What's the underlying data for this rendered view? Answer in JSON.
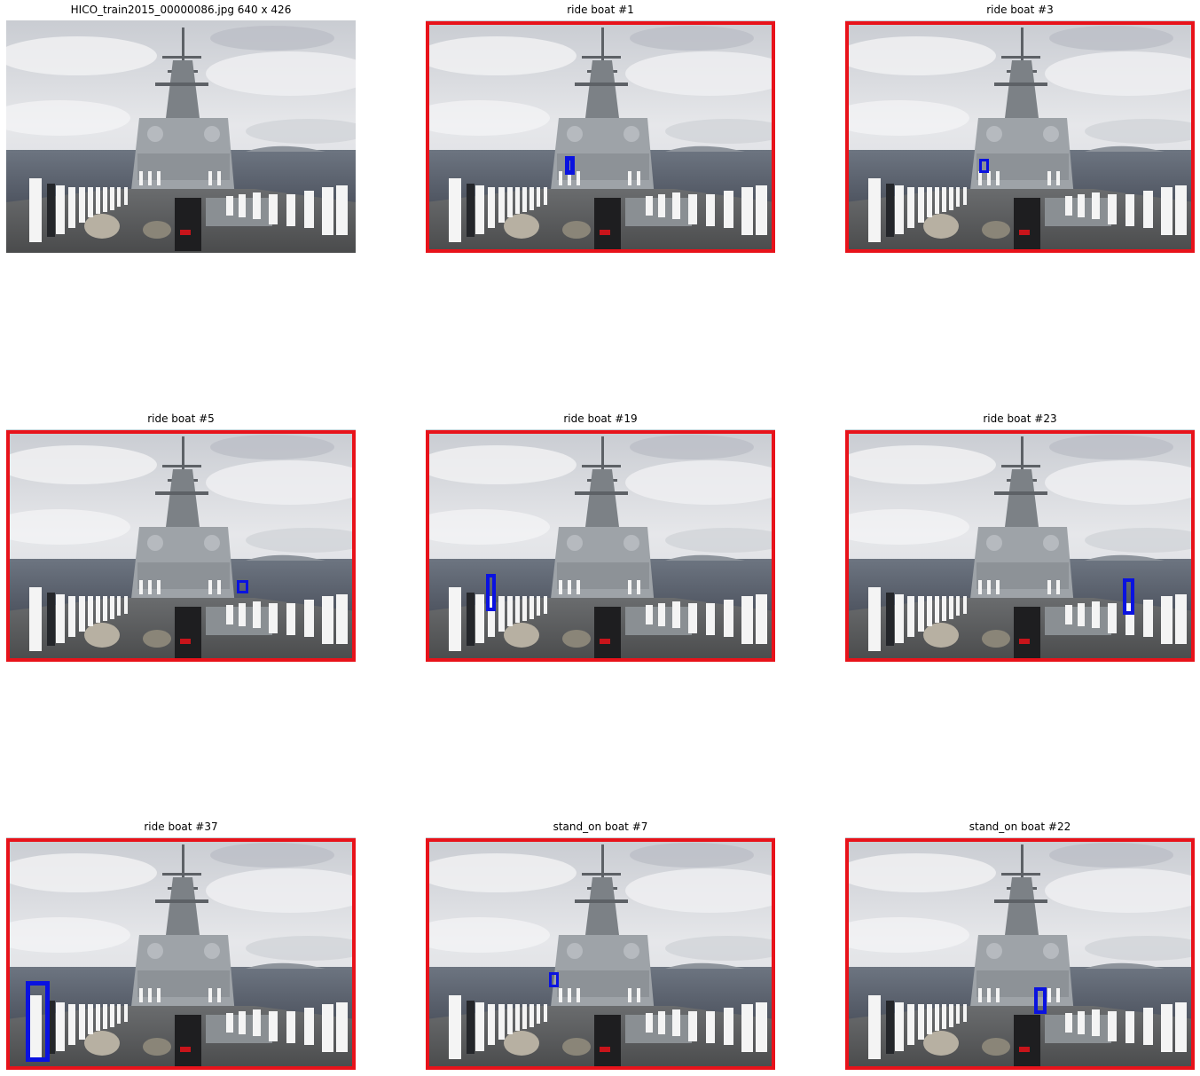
{
  "panels": [
    {
      "title": "HICO_train2015_00000086.jpg 640 x 426",
      "annotated": false
    },
    {
      "title": "ride boat #1",
      "annotated": true
    },
    {
      "title": "ride boat #3",
      "annotated": true
    },
    {
      "title": "ride boat #5",
      "annotated": true
    },
    {
      "title": "ride boat #19",
      "annotated": true
    },
    {
      "title": "ride boat #23",
      "annotated": true
    },
    {
      "title": "ride boat #37",
      "annotated": true
    },
    {
      "title": "stand_on boat #7",
      "annotated": true
    },
    {
      "title": "stand_on boat #22",
      "annotated": true
    }
  ],
  "colors": {
    "object_box": "#e8121a",
    "human_box": "#0a12e0"
  }
}
